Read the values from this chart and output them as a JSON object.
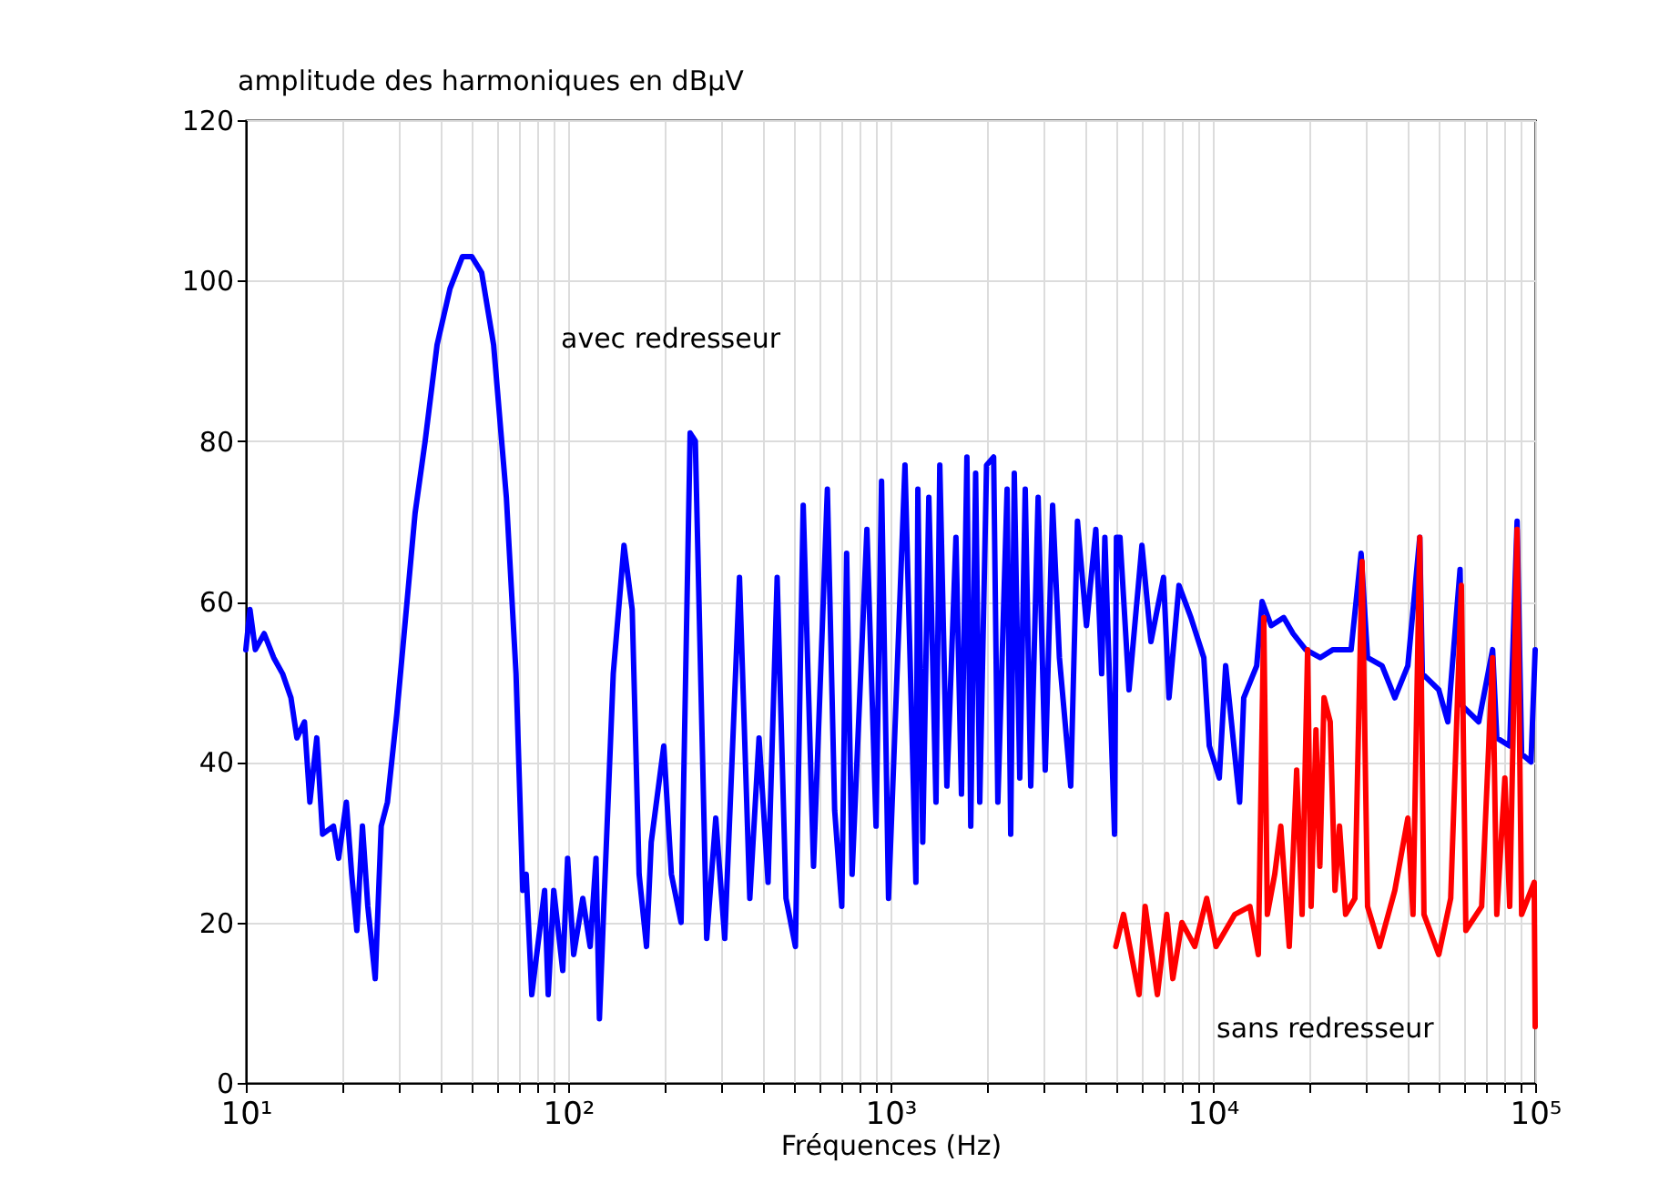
{
  "chart_data": {
    "type": "line",
    "xlabel": "Fréquences (Hz)",
    "ylabel": "amplitude des harmoniques en dBµV",
    "log": "x",
    "grid": true,
    "line_style": "solid",
    "xlim": [
      10,
      100000
    ],
    "ylim": [
      0,
      120
    ],
    "xticks": [
      {
        "value": 10,
        "label": "10¹"
      },
      {
        "value": 20,
        "label": null
      },
      {
        "value": 30,
        "label": null
      },
      {
        "value": 40,
        "label": null
      },
      {
        "value": 50,
        "label": null
      },
      {
        "value": 60,
        "label": null
      },
      {
        "value": 70,
        "label": null
      },
      {
        "value": 80,
        "label": null
      },
      {
        "value": 90,
        "label": null
      },
      {
        "value": 100,
        "label": "10²"
      },
      {
        "value": 200,
        "label": null
      },
      {
        "value": 300,
        "label": null
      },
      {
        "value": 400,
        "label": null
      },
      {
        "value": 500,
        "label": null
      },
      {
        "value": 600,
        "label": null
      },
      {
        "value": 700,
        "label": null
      },
      {
        "value": 800,
        "label": null
      },
      {
        "value": 900,
        "label": null
      },
      {
        "value": 1000,
        "label": "10³"
      },
      {
        "value": 2000,
        "label": null
      },
      {
        "value": 3000,
        "label": null
      },
      {
        "value": 4000,
        "label": null
      },
      {
        "value": 5000,
        "label": null
      },
      {
        "value": 6000,
        "label": null
      },
      {
        "value": 7000,
        "label": null
      },
      {
        "value": 8000,
        "label": null
      },
      {
        "value": 9000,
        "label": null
      },
      {
        "value": 10000,
        "label": "10⁴"
      },
      {
        "value": 20000,
        "label": null
      },
      {
        "value": 30000,
        "label": null
      },
      {
        "value": 40000,
        "label": null
      },
      {
        "value": 50000,
        "label": null
      },
      {
        "value": 60000,
        "label": null
      },
      {
        "value": 70000,
        "label": null
      },
      {
        "value": 80000,
        "label": null
      },
      {
        "value": 90000,
        "label": null
      },
      {
        "value": 100000,
        "label": "10⁵"
      }
    ],
    "yticks": [
      0,
      20,
      40,
      60,
      80,
      100,
      120
    ],
    "series": [
      {
        "name": "avec redresseur",
        "color": "#0000ff",
        "x": [
          10,
          10.3,
          10.7,
          11.4,
          12.2,
          13.0,
          13.8,
          14.4,
          15.2,
          15.8,
          16.6,
          17.3,
          18.7,
          19.4,
          20.5,
          21.3,
          22.1,
          23.0,
          23.9,
          25.2,
          26.3,
          27.5,
          29.4,
          33.5,
          36.0,
          39.2,
          43.0,
          47.0,
          50.2,
          53.9,
          58.7,
          64.3,
          68.9,
          72.3,
          74.1,
          77.1,
          84.5,
          86.7,
          90.2,
          96.2,
          99.6,
          104,
          111,
          117,
          122,
          125,
          129,
          138,
          149,
          158,
          166,
          175,
          181,
          198,
          209,
          224,
          239,
          248,
          269,
          287,
          306,
          340,
          366,
          391,
          417,
          445,
          474,
          507,
          536,
          577,
          637,
          671,
          706,
          731,
          760,
          845,
          902,
          938,
          986,
          1109,
          1199,
          1216,
          1259,
          1315,
          1384,
          1422,
          1496,
          1596,
          1660,
          1726,
          1774,
          1837,
          1892,
          1986,
          2089,
          2153,
          2300,
          2360,
          2421,
          2518,
          2618,
          2723,
          2871,
          3020,
          3184,
          3342,
          3623,
          3802,
          4055,
          4335,
          4519,
          4624,
          4955,
          5023,
          5152,
          5495,
          6026,
          6427,
          7031,
          7311,
          7852,
          8551,
          9376,
          9750,
          10470,
          10960,
          12110,
          12470,
          13680,
          14220,
          15170,
          16600,
          17740,
          19410,
          21530,
          23600,
          26850,
          28840,
          30200,
          33500,
          36700,
          40270,
          43850,
          44670,
          50230,
          53580,
          58480,
          59430,
          66830,
          73790,
          76030,
          83370,
          87900,
          90780,
          97060,
          100000
        ],
        "values": [
          54,
          59,
          54,
          56,
          53,
          51,
          48,
          43,
          45,
          35,
          43,
          31,
          32,
          28,
          35,
          26,
          19,
          32,
          22,
          13,
          32,
          35,
          46,
          71,
          80,
          92,
          99,
          103,
          103,
          101,
          92,
          73,
          51,
          24,
          26,
          11,
          24,
          11,
          24,
          14,
          28,
          16,
          23,
          17,
          28,
          8,
          22,
          51,
          67,
          59,
          26,
          17,
          30,
          42,
          26,
          20,
          81,
          80,
          18,
          33,
          18,
          63,
          23,
          43,
          25,
          63,
          23,
          17,
          72,
          27,
          74,
          34,
          22,
          66,
          26,
          69,
          32,
          75,
          23,
          77,
          25,
          74,
          30,
          73,
          35,
          77,
          37,
          68,
          36,
          78,
          32,
          76,
          35,
          77,
          78,
          35,
          74,
          31,
          76,
          38,
          74,
          37,
          73,
          39,
          72,
          53,
          37,
          70,
          57,
          69,
          51,
          68,
          31,
          68,
          68,
          49,
          67,
          55,
          63,
          48,
          62,
          58,
          53,
          42,
          38,
          52,
          35,
          48,
          52,
          60,
          57,
          58,
          56,
          54,
          53,
          54,
          54,
          66,
          53,
          52,
          48,
          52,
          68,
          51,
          49,
          45,
          64,
          47,
          45,
          54,
          43,
          42,
          70,
          41,
          40,
          54
        ]
      },
      {
        "name": "sans redresseur",
        "color": "#ff0000",
        "x": [
          5000,
          5284,
          5902,
          6166,
          6730,
          7194,
          7516,
          8017,
          8790,
          9572,
          10230,
          11700,
          13030,
          13840,
          14390,
          14760,
          15560,
          16250,
          17260,
          18200,
          18920,
          19680,
          20180,
          20890,
          21480,
          22130,
          23130,
          23930,
          24720,
          25820,
          27590,
          29040,
          30200,
          32890,
          36700,
          40270,
          41780,
          43850,
          45190,
          50230,
          54700,
          59020,
          60950,
          68230,
          73790,
          76030,
          80540,
          83370,
          87900,
          90780,
          99310,
          100000
        ],
        "values": [
          17,
          21,
          11,
          22,
          11,
          21,
          13,
          20,
          17,
          23,
          17,
          21,
          22,
          16,
          58,
          21,
          26,
          32,
          17,
          39,
          21,
          54,
          22,
          44,
          27,
          48,
          45,
          24,
          32,
          21,
          23,
          65,
          22,
          17,
          24,
          33,
          21,
          68,
          21,
          16,
          23,
          62,
          19,
          22,
          53,
          21,
          38,
          22,
          69,
          21,
          25,
          7
        ]
      }
    ]
  }
}
